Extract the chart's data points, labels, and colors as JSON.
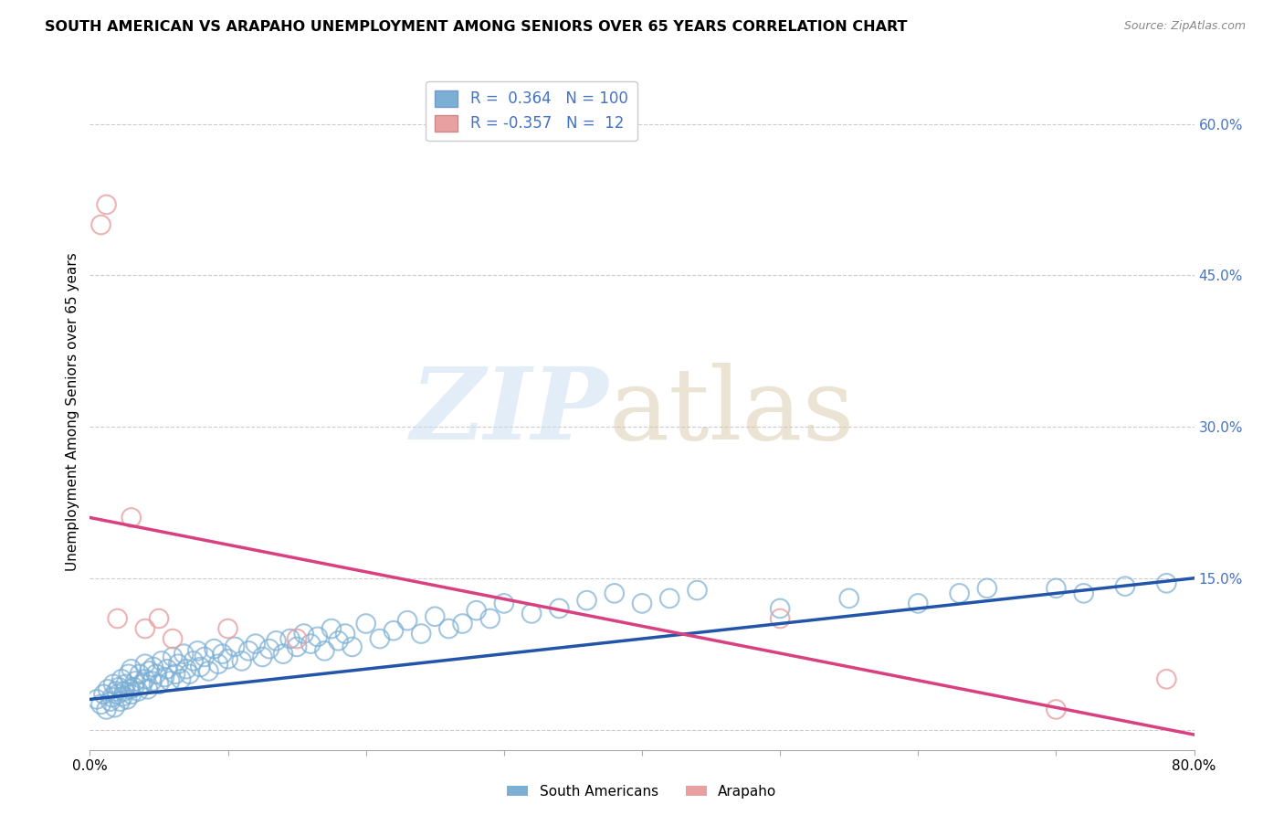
{
  "title": "SOUTH AMERICAN VS ARAPAHO UNEMPLOYMENT AMONG SENIORS OVER 65 YEARS CORRELATION CHART",
  "source": "Source: ZipAtlas.com",
  "ylabel": "Unemployment Among Seniors over 65 years",
  "xlim": [
    0.0,
    0.8
  ],
  "ylim": [
    -0.02,
    0.65
  ],
  "x_ticks": [
    0.0,
    0.1,
    0.2,
    0.3,
    0.4,
    0.5,
    0.6,
    0.7,
    0.8
  ],
  "y_ticks_right": [
    0.0,
    0.15,
    0.3,
    0.45,
    0.6
  ],
  "grid_color": "#cccccc",
  "background_color": "#ffffff",
  "blue_color": "#7bafd4",
  "blue_line_color": "#2255aa",
  "pink_color": "#e8a0a0",
  "pink_line_color": "#d94080",
  "R_blue": 0.364,
  "N_blue": 100,
  "R_pink": -0.357,
  "N_pink": 12,
  "legend_label_blue": "South Americans",
  "legend_label_pink": "Arapaho",
  "blue_line_x0": 0.0,
  "blue_line_y0": 0.03,
  "blue_line_x1": 0.8,
  "blue_line_y1": 0.15,
  "pink_line_x0": 0.0,
  "pink_line_y0": 0.21,
  "pink_line_x1": 0.8,
  "pink_line_y1": -0.005,
  "blue_scatter_x": [
    0.005,
    0.008,
    0.01,
    0.012,
    0.013,
    0.015,
    0.016,
    0.017,
    0.018,
    0.019,
    0.02,
    0.021,
    0.022,
    0.023,
    0.024,
    0.025,
    0.026,
    0.027,
    0.028,
    0.029,
    0.03,
    0.03,
    0.032,
    0.033,
    0.035,
    0.036,
    0.038,
    0.04,
    0.04,
    0.042,
    0.043,
    0.045,
    0.046,
    0.048,
    0.05,
    0.052,
    0.054,
    0.056,
    0.058,
    0.06,
    0.062,
    0.064,
    0.066,
    0.068,
    0.07,
    0.072,
    0.075,
    0.078,
    0.08,
    0.083,
    0.086,
    0.09,
    0.093,
    0.096,
    0.1,
    0.105,
    0.11,
    0.115,
    0.12,
    0.125,
    0.13,
    0.135,
    0.14,
    0.145,
    0.15,
    0.155,
    0.16,
    0.165,
    0.17,
    0.175,
    0.18,
    0.185,
    0.19,
    0.2,
    0.21,
    0.22,
    0.23,
    0.24,
    0.25,
    0.26,
    0.27,
    0.28,
    0.29,
    0.3,
    0.32,
    0.34,
    0.36,
    0.38,
    0.4,
    0.42,
    0.44,
    0.5,
    0.55,
    0.6,
    0.63,
    0.65,
    0.7,
    0.72,
    0.75,
    0.78
  ],
  "blue_scatter_y": [
    0.03,
    0.025,
    0.035,
    0.02,
    0.04,
    0.028,
    0.032,
    0.045,
    0.022,
    0.038,
    0.035,
    0.042,
    0.028,
    0.05,
    0.033,
    0.038,
    0.045,
    0.03,
    0.055,
    0.04,
    0.035,
    0.06,
    0.042,
    0.048,
    0.038,
    0.055,
    0.045,
    0.05,
    0.065,
    0.04,
    0.058,
    0.048,
    0.062,
    0.055,
    0.045,
    0.068,
    0.052,
    0.06,
    0.048,
    0.072,
    0.055,
    0.065,
    0.05,
    0.075,
    0.06,
    0.055,
    0.068,
    0.078,
    0.062,
    0.072,
    0.058,
    0.08,
    0.065,
    0.075,
    0.07,
    0.082,
    0.068,
    0.078,
    0.085,
    0.072,
    0.08,
    0.088,
    0.075,
    0.09,
    0.082,
    0.095,
    0.085,
    0.092,
    0.078,
    0.1,
    0.088,
    0.095,
    0.082,
    0.105,
    0.09,
    0.098,
    0.108,
    0.095,
    0.112,
    0.1,
    0.105,
    0.118,
    0.11,
    0.125,
    0.115,
    0.12,
    0.128,
    0.135,
    0.125,
    0.13,
    0.138,
    0.12,
    0.13,
    0.125,
    0.135,
    0.14,
    0.14,
    0.135,
    0.142,
    0.145
  ],
  "pink_scatter_x": [
    0.008,
    0.012,
    0.02,
    0.03,
    0.04,
    0.05,
    0.06,
    0.1,
    0.15,
    0.5,
    0.7,
    0.78
  ],
  "pink_scatter_y": [
    0.5,
    0.52,
    0.11,
    0.21,
    0.1,
    0.11,
    0.09,
    0.1,
    0.09,
    0.11,
    0.02,
    0.05
  ]
}
